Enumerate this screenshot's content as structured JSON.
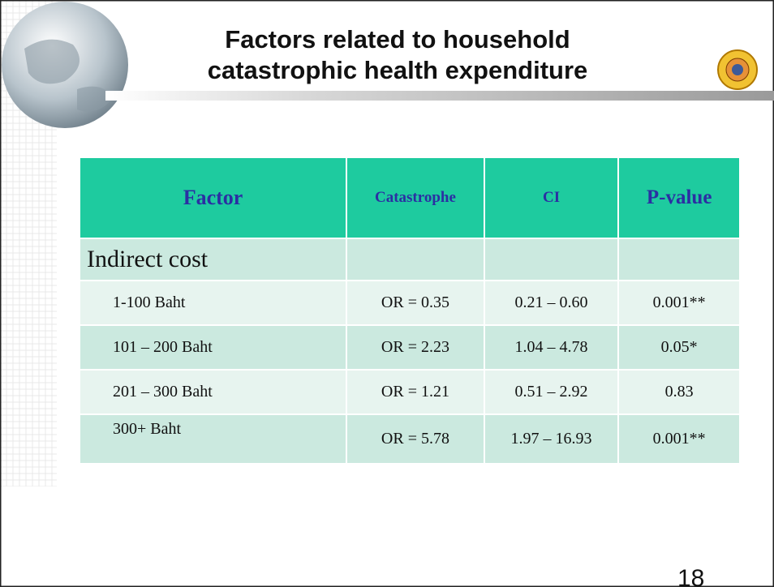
{
  "header": {
    "title": [
      "Factors related to household",
      "catastrophic health expenditure"
    ]
  },
  "table": {
    "columns": [
      "Factor",
      "Catastrophe",
      "CI",
      "P-value"
    ],
    "section": "Indirect cost",
    "rows": [
      [
        "1-100 Baht",
        "OR = 0.35",
        "0.21 – 0.60",
        "0.001**"
      ],
      [
        "101 – 200 Baht",
        "OR = 2.23",
        "1.04 – 4.78",
        "0.05*"
      ],
      [
        "201 – 300 Baht",
        "OR = 1.21",
        "0.51 – 2.92",
        "0.83"
      ],
      [
        "300+ Baht",
        "OR = 5.78",
        "1.97 – 16.93",
        "0.001**"
      ]
    ]
  },
  "footer": {
    "page": "18"
  }
}
